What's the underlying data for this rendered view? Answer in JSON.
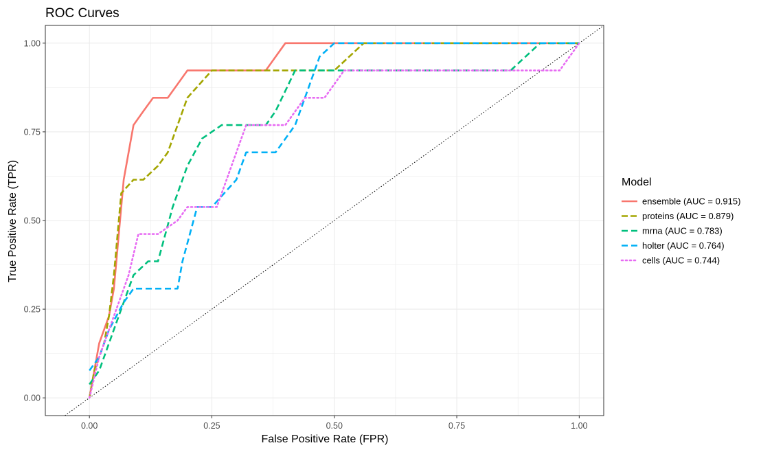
{
  "chart_data": {
    "type": "line",
    "title": "ROC Curves",
    "xlabel": "False Positive Rate (FPR)",
    "ylabel": "True Positive Rate (TPR)",
    "xlim": [
      -0.09,
      1.05
    ],
    "ylim": [
      -0.05,
      1.05
    ],
    "xticks": [
      0.0,
      0.25,
      0.5,
      0.75,
      1.0
    ],
    "xtick_labels": [
      "0.00",
      "0.25",
      "0.50",
      "0.75",
      "1.00"
    ],
    "yticks": [
      0.0,
      0.25,
      0.5,
      0.75,
      1.0
    ],
    "ytick_labels": [
      "0.00",
      "0.25",
      "0.50",
      "0.75",
      "1.00"
    ],
    "grid": true,
    "legend_title": "Model",
    "legend_position": "right",
    "reference_line": {
      "style": "dotted",
      "color": "#000000",
      "x": [
        0,
        1
      ],
      "y": [
        0,
        1
      ]
    },
    "series": [
      {
        "name": "ensemble (AUC = 0.915)",
        "color": "#F8766D",
        "dash": "solid",
        "x": [
          0.0,
          0.02,
          0.04,
          0.05,
          0.07,
          0.09,
          0.11,
          0.13,
          0.16,
          0.2,
          0.24,
          0.3,
          0.36,
          0.4,
          0.55,
          0.7,
          0.85,
          1.0
        ],
        "y": [
          0.0,
          0.154,
          0.231,
          0.308,
          0.615,
          0.769,
          0.808,
          0.846,
          0.846,
          0.923,
          0.923,
          0.923,
          0.923,
          1.0,
          1.0,
          1.0,
          1.0,
          1.0
        ]
      },
      {
        "name": "proteins (AUC = 0.879)",
        "color": "#A3A500",
        "dash": "longdash",
        "x": [
          0.0,
          0.01,
          0.03,
          0.04,
          0.05,
          0.065,
          0.09,
          0.11,
          0.14,
          0.16,
          0.2,
          0.25,
          0.3,
          0.35,
          0.4,
          0.5,
          0.56,
          0.7,
          0.85,
          1.0
        ],
        "y": [
          0.0,
          0.077,
          0.154,
          0.231,
          0.346,
          0.577,
          0.615,
          0.615,
          0.654,
          0.692,
          0.846,
          0.923,
          0.923,
          0.923,
          0.923,
          0.923,
          1.0,
          1.0,
          1.0,
          1.0
        ]
      },
      {
        "name": "mrna (AUC = 0.783)",
        "color": "#00BF7D",
        "dash": "dashed",
        "x": [
          0.0,
          0.02,
          0.04,
          0.06,
          0.09,
          0.12,
          0.14,
          0.17,
          0.2,
          0.23,
          0.27,
          0.33,
          0.36,
          0.38,
          0.42,
          0.46,
          0.6,
          0.75,
          0.86,
          0.92,
          1.0
        ],
        "y": [
          0.038,
          0.077,
          0.154,
          0.231,
          0.346,
          0.385,
          0.385,
          0.538,
          0.654,
          0.731,
          0.769,
          0.769,
          0.769,
          0.808,
          0.923,
          0.923,
          0.923,
          0.923,
          0.923,
          1.0,
          1.0
        ]
      },
      {
        "name": "holter (AUC = 0.764)",
        "color": "#00B0F6",
        "dash": "dashed",
        "x": [
          0.0,
          0.02,
          0.04,
          0.07,
          0.09,
          0.11,
          0.15,
          0.18,
          0.19,
          0.22,
          0.25,
          0.3,
          0.32,
          0.36,
          0.38,
          0.42,
          0.44,
          0.47,
          0.5,
          0.6,
          0.75,
          0.9,
          1.0
        ],
        "y": [
          0.077,
          0.115,
          0.192,
          0.269,
          0.308,
          0.308,
          0.308,
          0.308,
          0.385,
          0.538,
          0.538,
          0.615,
          0.692,
          0.692,
          0.692,
          0.769,
          0.846,
          0.962,
          1.0,
          1.0,
          1.0,
          1.0,
          1.0
        ]
      },
      {
        "name": "cells (AUC = 0.744)",
        "color": "#E76BF3",
        "dash": "dotted",
        "x": [
          0.0,
          0.02,
          0.04,
          0.06,
          0.08,
          0.1,
          0.14,
          0.18,
          0.2,
          0.26,
          0.28,
          0.3,
          0.32,
          0.36,
          0.4,
          0.44,
          0.48,
          0.52,
          0.6,
          0.7,
          0.8,
          0.96,
          1.0
        ],
        "y": [
          0.0,
          0.115,
          0.192,
          0.269,
          0.346,
          0.462,
          0.462,
          0.5,
          0.538,
          0.538,
          0.615,
          0.692,
          0.769,
          0.769,
          0.769,
          0.846,
          0.846,
          0.923,
          0.923,
          0.923,
          0.923,
          0.923,
          1.0
        ]
      }
    ]
  }
}
